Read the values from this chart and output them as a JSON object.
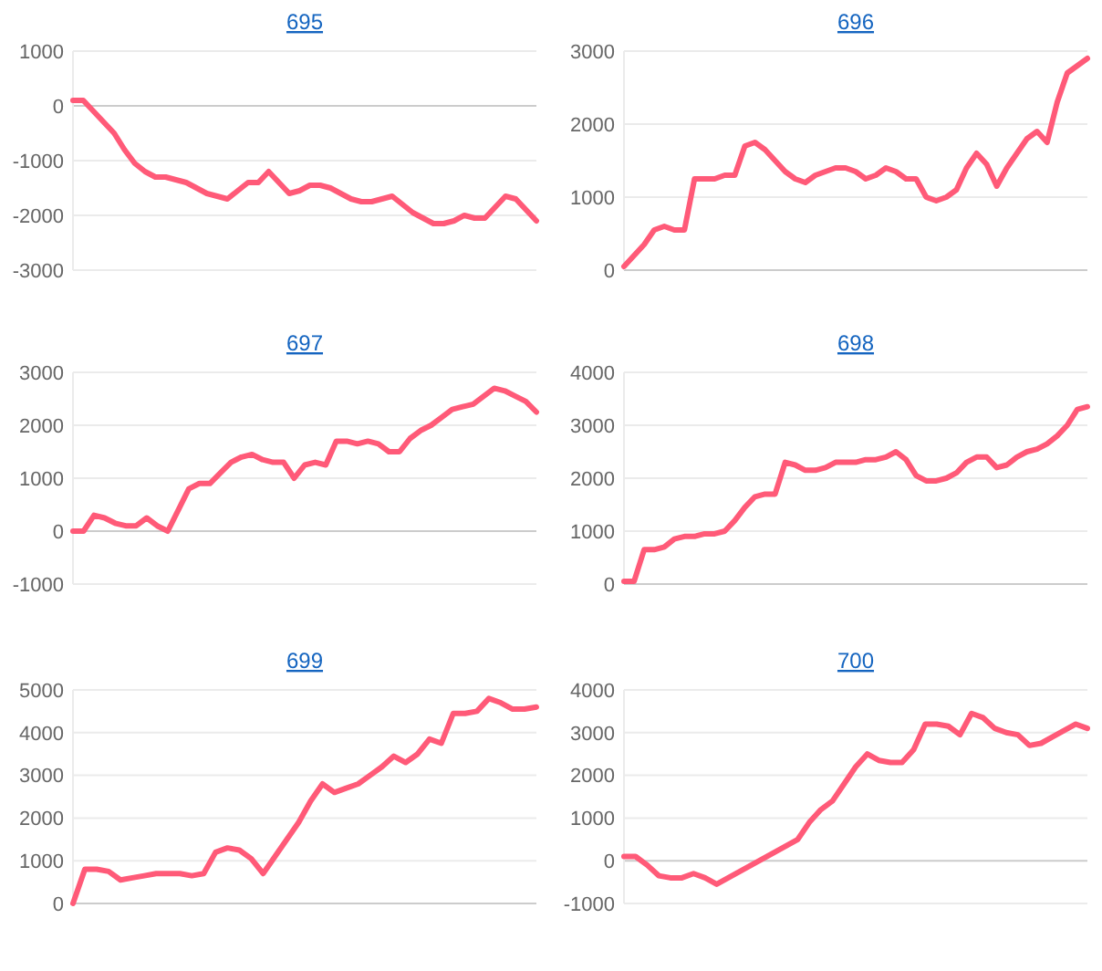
{
  "chart_data": [
    {
      "type": "line",
      "title": "695",
      "categories": [
        null,
        null,
        null,
        null,
        null,
        null,
        null,
        null,
        null,
        null,
        null,
        null,
        null,
        null,
        null,
        null,
        null,
        null,
        null,
        null,
        null,
        null,
        null,
        null,
        null,
        null,
        null,
        null,
        null,
        null,
        null,
        null,
        null,
        null,
        null,
        null,
        null,
        null,
        null,
        null,
        null,
        null,
        null,
        null,
        null,
        null
      ],
      "series": [
        {
          "color": "#ff5a78",
          "values": [
            100,
            100,
            -100,
            -300,
            -500,
            -800,
            -1050,
            -1200,
            -1300,
            -1300,
            -1350,
            -1400,
            -1500,
            -1600,
            -1650,
            -1700,
            -1550,
            -1400,
            -1400,
            -1200,
            -1400,
            -1600,
            -1550,
            -1450,
            -1450,
            -1500,
            -1600,
            -1700,
            -1750,
            -1750,
            -1700,
            -1650,
            -1800,
            -1950,
            -2050,
            -2150,
            -2150,
            -2100,
            -2000,
            -2050,
            -2050,
            -1850,
            -1650,
            -1700,
            -1900,
            -2100
          ]
        }
      ],
      "ylim": [
        -3000,
        1000
      ],
      "yticks": [
        -3000,
        -2000,
        -1000,
        0,
        1000
      ],
      "grid": "y",
      "marker": "none",
      "line_style": "solid"
    },
    {
      "type": "line",
      "title": "696",
      "categories": [
        null,
        null,
        null,
        null,
        null,
        null,
        null,
        null,
        null,
        null,
        null,
        null,
        null,
        null,
        null,
        null,
        null,
        null,
        null,
        null,
        null,
        null,
        null,
        null,
        null,
        null,
        null,
        null,
        null,
        null,
        null,
        null,
        null,
        null,
        null,
        null,
        null,
        null,
        null,
        null,
        null,
        null,
        null,
        null,
        null,
        null,
        null
      ],
      "series": [
        {
          "color": "#ff5a78",
          "values": [
            50,
            200,
            350,
            550,
            600,
            550,
            550,
            1250,
            1250,
            1250,
            1300,
            1300,
            1700,
            1750,
            1650,
            1500,
            1350,
            1250,
            1200,
            1300,
            1350,
            1400,
            1400,
            1350,
            1250,
            1300,
            1400,
            1350,
            1250,
            1250,
            1000,
            950,
            1000,
            1100,
            1400,
            1600,
            1450,
            1150,
            1400,
            1600,
            1800,
            1900,
            1750,
            2300,
            2700,
            2800,
            2900
          ]
        }
      ],
      "ylim": [
        0,
        3000
      ],
      "yticks": [
        0,
        1000,
        2000,
        3000
      ],
      "grid": "y",
      "marker": "none",
      "line_style": "solid"
    },
    {
      "type": "line",
      "title": "697",
      "categories": [
        null,
        null,
        null,
        null,
        null,
        null,
        null,
        null,
        null,
        null,
        null,
        null,
        null,
        null,
        null,
        null,
        null,
        null,
        null,
        null,
        null,
        null,
        null,
        null,
        null,
        null,
        null,
        null,
        null,
        null,
        null,
        null,
        null,
        null,
        null,
        null,
        null,
        null,
        null,
        null,
        null,
        null,
        null,
        null,
        null
      ],
      "series": [
        {
          "color": "#ff5a78",
          "values": [
            0,
            0,
            300,
            250,
            150,
            100,
            100,
            250,
            100,
            0,
            400,
            800,
            900,
            900,
            1100,
            1300,
            1400,
            1450,
            1350,
            1300,
            1300,
            1000,
            1250,
            1300,
            1250,
            1700,
            1700,
            1650,
            1700,
            1650,
            1500,
            1500,
            1750,
            1900,
            2000,
            2150,
            2300,
            2350,
            2400,
            2550,
            2700,
            2650,
            2550,
            2450,
            2250
          ]
        }
      ],
      "ylim": [
        -1000,
        3000
      ],
      "yticks": [
        -1000,
        0,
        1000,
        2000,
        3000
      ],
      "grid": "y",
      "marker": "none",
      "line_style": "solid"
    },
    {
      "type": "line",
      "title": "698",
      "categories": [
        null,
        null,
        null,
        null,
        null,
        null,
        null,
        null,
        null,
        null,
        null,
        null,
        null,
        null,
        null,
        null,
        null,
        null,
        null,
        null,
        null,
        null,
        null,
        null,
        null,
        null,
        null,
        null,
        null,
        null,
        null,
        null,
        null,
        null,
        null,
        null,
        null,
        null,
        null,
        null,
        null,
        null,
        null,
        null,
        null,
        null,
        null
      ],
      "series": [
        {
          "color": "#ff5a78",
          "values": [
            50,
            50,
            650,
            650,
            700,
            850,
            900,
            900,
            950,
            950,
            1000,
            1200,
            1450,
            1650,
            1700,
            1700,
            2300,
            2250,
            2150,
            2150,
            2200,
            2300,
            2300,
            2300,
            2350,
            2350,
            2400,
            2500,
            2350,
            2050,
            1950,
            1950,
            2000,
            2100,
            2300,
            2400,
            2400,
            2200,
            2250,
            2400,
            2500,
            2550,
            2650,
            2800,
            3000,
            3300,
            3350
          ]
        }
      ],
      "ylim": [
        0,
        4000
      ],
      "yticks": [
        0,
        1000,
        2000,
        3000,
        4000
      ],
      "grid": "y",
      "marker": "none",
      "line_style": "solid"
    },
    {
      "type": "line",
      "title": "699",
      "categories": [
        null,
        null,
        null,
        null,
        null,
        null,
        null,
        null,
        null,
        null,
        null,
        null,
        null,
        null,
        null,
        null,
        null,
        null,
        null,
        null,
        null,
        null,
        null,
        null,
        null,
        null,
        null,
        null,
        null,
        null,
        null,
        null,
        null,
        null,
        null,
        null,
        null,
        null,
        null,
        null
      ],
      "series": [
        {
          "color": "#ff5a78",
          "values": [
            0,
            800,
            800,
            750,
            550,
            600,
            650,
            700,
            700,
            700,
            650,
            700,
            1200,
            1300,
            1250,
            1050,
            700,
            1100,
            1500,
            1900,
            2400,
            2800,
            2600,
            2700,
            2800,
            3000,
            3200,
            3450,
            3300,
            3500,
            3850,
            3750,
            4450,
            4450,
            4500,
            4800,
            4700,
            4550,
            4550,
            4600
          ]
        }
      ],
      "ylim": [
        0,
        5000
      ],
      "yticks": [
        0,
        1000,
        2000,
        3000,
        4000,
        5000
      ],
      "grid": "y",
      "marker": "none",
      "line_style": "solid"
    },
    {
      "type": "line",
      "title": "700",
      "categories": [
        null,
        null,
        null,
        null,
        null,
        null,
        null,
        null,
        null,
        null,
        null,
        null,
        null,
        null,
        null,
        null,
        null,
        null,
        null,
        null,
        null,
        null,
        null,
        null,
        null,
        null,
        null,
        null,
        null,
        null,
        null,
        null,
        null,
        null,
        null,
        null,
        null,
        null,
        null,
        null,
        null
      ],
      "series": [
        {
          "color": "#ff5a78",
          "values": [
            100,
            100,
            -100,
            -350,
            -400,
            -400,
            -300,
            -400,
            -550,
            -400,
            -250,
            -100,
            50,
            200,
            350,
            500,
            900,
            1200,
            1400,
            1800,
            2200,
            2500,
            2350,
            2300,
            2300,
            2600,
            3200,
            3200,
            3150,
            2950,
            3450,
            3350,
            3100,
            3000,
            2950,
            2700,
            2750,
            2900,
            3050,
            3200,
            3100
          ]
        }
      ],
      "ylim": [
        -1000,
        4000
      ],
      "yticks": [
        -1000,
        0,
        1000,
        2000,
        3000,
        4000
      ],
      "grid": "y",
      "marker": "none",
      "line_style": "solid"
    }
  ]
}
